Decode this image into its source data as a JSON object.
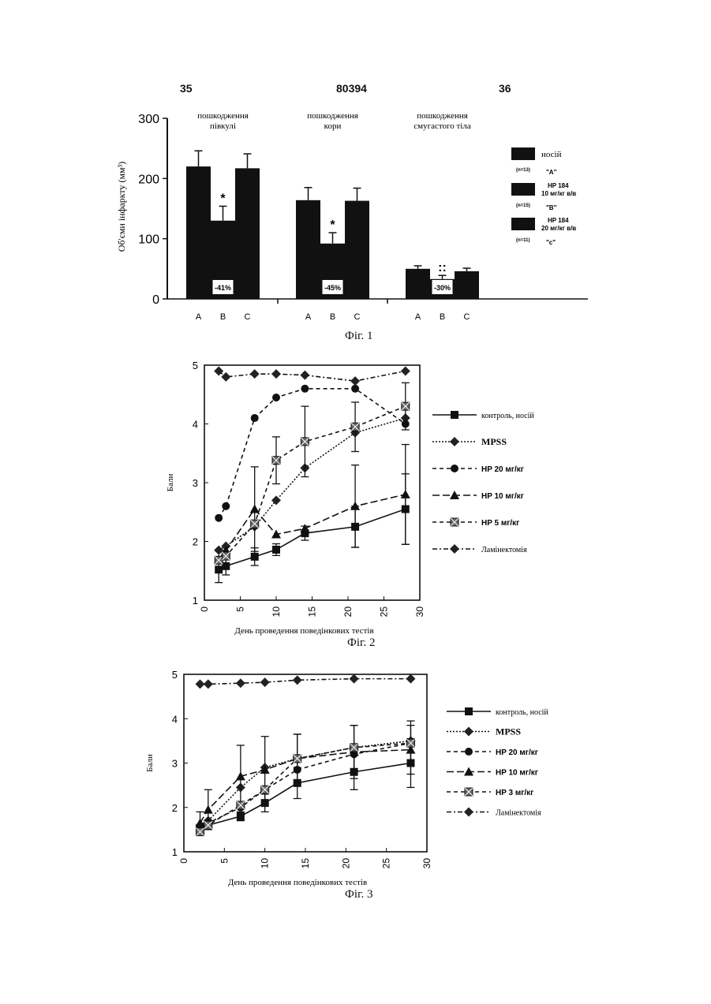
{
  "page": {
    "left_number": "35",
    "center_number": "80394",
    "right_number": "36"
  },
  "captions": {
    "fig1": "Фіг. 1",
    "fig2": "Фіг. 2",
    "fig3": "Фіг. 3"
  },
  "chart_data": [
    {
      "type": "bar",
      "ylabel": "Об'єми інфаркту (мм³)",
      "ylim": [
        0,
        300
      ],
      "yticks": [
        0,
        100,
        200,
        300
      ],
      "groups": [
        {
          "label": "пошкодження півкулі",
          "categories": [
            "A",
            "B",
            "C"
          ],
          "values": [
            220,
            130,
            217
          ],
          "errors": [
            26,
            24,
            24
          ],
          "pct_label": "-41%",
          "significant": "*"
        },
        {
          "label": "пошкодження кори",
          "categories": [
            "A",
            "B",
            "C"
          ],
          "values": [
            164,
            92,
            163
          ],
          "errors": [
            21,
            18,
            21
          ],
          "pct_label": "-45%",
          "significant": "*"
        },
        {
          "label": "пошкодження смугастого тіла",
          "categories": [
            "A",
            "B",
            "C"
          ],
          "values": [
            50,
            33,
            46
          ],
          "errors": [
            5,
            6,
            5
          ],
          "pct_label": "-30%",
          "significant": "::"
        }
      ],
      "legend": [
        {
          "name": "носій",
          "n": "(n=13)",
          "code": "\"A\""
        },
        {
          "name": "HP 184 10 мг/кг в/в",
          "n": "(n=15)",
          "code": "\"B\""
        },
        {
          "name": "HP 184 20 мг/кг в/в",
          "n": "(n=11)",
          "code": "\"c\""
        }
      ],
      "colors": {
        "bar": "#111111"
      }
    },
    {
      "type": "line",
      "xlabel": "День проведення поведінкових тестів",
      "ylabel": "Бали",
      "xlim": [
        0,
        30
      ],
      "ylim": [
        1,
        5
      ],
      "xticks": [
        0,
        5,
        10,
        15,
        20,
        25,
        30
      ],
      "yticks": [
        1,
        2,
        3,
        4,
        5
      ],
      "series": [
        {
          "name": "контроль, носій",
          "marker": "square",
          "dash": "solid",
          "x": [
            2,
            3,
            7,
            10,
            14,
            21,
            28
          ],
          "y": [
            1.52,
            1.58,
            1.74,
            1.86,
            2.14,
            2.25,
            2.55
          ],
          "err": [
            0.22,
            0.15,
            0.15,
            0.1,
            0.12,
            0.35,
            0.6
          ]
        },
        {
          "name": "MPSS",
          "marker": "diamond",
          "dash": "dotted",
          "x": [
            2,
            3,
            7,
            10,
            14,
            21,
            28
          ],
          "y": [
            1.85,
            1.92,
            2.25,
            2.7,
            3.25,
            3.85,
            4.1
          ],
          "err": [
            0,
            0,
            0,
            0,
            0,
            0,
            0
          ]
        },
        {
          "name": "HP 20 мг/кг",
          "marker": "circle",
          "dash": "dashed",
          "x": [
            2,
            3,
            7,
            10,
            14,
            21,
            28
          ],
          "y": [
            2.4,
            2.6,
            4.1,
            4.45,
            4.6,
            4.6,
            4.0
          ],
          "err": [
            0,
            0,
            0,
            0,
            0,
            0,
            0
          ]
        },
        {
          "name": "HP 10 мг/кг",
          "marker": "triangle",
          "dash": "longdash",
          "x": [
            2,
            3,
            7,
            10,
            14,
            21,
            28
          ],
          "y": [
            1.7,
            1.85,
            2.55,
            2.12,
            2.22,
            2.6,
            2.8
          ],
          "err": [
            0,
            0,
            0.72,
            0,
            0,
            0.7,
            0.85
          ]
        },
        {
          "name": "HP 5 мг/кг",
          "marker": "xsquare",
          "dash": "dashed",
          "x": [
            2,
            3,
            7,
            10,
            14,
            21,
            28
          ],
          "y": [
            1.68,
            1.75,
            2.3,
            3.38,
            3.7,
            3.95,
            4.3
          ],
          "err": [
            0,
            0,
            0,
            0.4,
            0.6,
            0.42,
            0.4
          ]
        },
        {
          "name": "Ламінектомія",
          "marker": "diamond",
          "dash": "dashdot",
          "x": [
            2,
            3,
            7,
            10,
            14,
            21,
            28
          ],
          "y": [
            4.9,
            4.8,
            4.85,
            4.85,
            4.83,
            4.73,
            4.9
          ],
          "err": [
            0,
            0,
            0,
            0,
            0,
            0,
            0
          ]
        }
      ]
    },
    {
      "type": "line",
      "xlabel": "День проведення поведінкових тестів",
      "ylabel": "Бали",
      "xlim": [
        0,
        30
      ],
      "ylim": [
        1,
        5
      ],
      "xticks": [
        0,
        5,
        10,
        15,
        20,
        25,
        30
      ],
      "yticks": [
        1,
        2,
        3,
        4,
        5
      ],
      "series": [
        {
          "name": "контроль, носій",
          "marker": "square",
          "dash": "solid",
          "x": [
            2,
            3,
            7,
            10,
            14,
            21,
            28
          ],
          "y": [
            1.5,
            1.6,
            1.8,
            2.1,
            2.55,
            2.8,
            3.0
          ],
          "err": [
            0.1,
            0.1,
            0.1,
            0.2,
            0.35,
            0.4,
            0.55
          ]
        },
        {
          "name": "MPSS",
          "marker": "diamond",
          "dash": "dotted",
          "x": [
            2,
            3,
            7,
            10,
            14,
            21,
            28
          ],
          "y": [
            1.6,
            1.7,
            2.45,
            2.9,
            3.1,
            3.35,
            3.5
          ],
          "err": [
            0,
            0,
            0,
            0,
            0,
            0,
            0
          ]
        },
        {
          "name": "HP 20 мг/кг",
          "marker": "circle",
          "dash": "dashed",
          "x": [
            2,
            3,
            7,
            10,
            14,
            21,
            28
          ],
          "y": [
            1.55,
            1.65,
            2.0,
            2.4,
            2.85,
            3.2,
            3.45
          ],
          "err": [
            0,
            0,
            0,
            0,
            0,
            0,
            0
          ]
        },
        {
          "name": "HP 10 мг/кг",
          "marker": "triangle",
          "dash": "longdash",
          "x": [
            2,
            3,
            7,
            10,
            14,
            21,
            28
          ],
          "y": [
            1.65,
            1.95,
            2.7,
            2.85,
            3.1,
            3.25,
            3.3
          ],
          "err": [
            0.25,
            0.45,
            0.7,
            0.75,
            0.55,
            0.6,
            0.55
          ]
        },
        {
          "name": "HP 3 мг/кг",
          "marker": "xsquare",
          "dash": "dashed",
          "x": [
            2,
            3,
            7,
            10,
            14,
            21,
            28
          ],
          "y": [
            1.45,
            1.6,
            2.05,
            2.4,
            3.1,
            3.35,
            3.45
          ],
          "err": [
            0,
            0,
            0,
            0,
            0.55,
            0.5,
            0.5
          ]
        },
        {
          "name": "Ламінектомія",
          "marker": "diamond",
          "dash": "dashdot",
          "x": [
            2,
            3,
            7,
            10,
            14,
            21,
            28
          ],
          "y": [
            4.78,
            4.78,
            4.8,
            4.82,
            4.87,
            4.9,
            4.9
          ],
          "err": [
            0,
            0,
            0,
            0,
            0,
            0,
            0
          ]
        }
      ]
    }
  ]
}
